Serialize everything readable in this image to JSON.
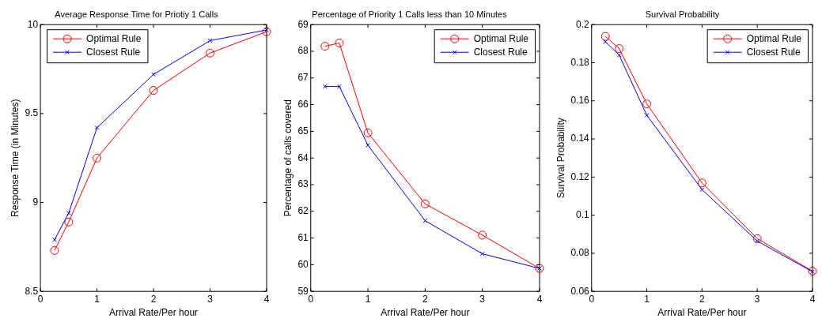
{
  "chart_data": [
    {
      "type": "line",
      "title": "Average Response Time for Priotiy 1 Calls",
      "xlabel": "Arrival Rate/Per hour",
      "ylabel": "Response Time (in Minutes)",
      "x": [
        0.25,
        0.5,
        1,
        2,
        3,
        4
      ],
      "xlim": [
        0,
        4
      ],
      "xticks": [
        0,
        1,
        2,
        3,
        4
      ],
      "ylim": [
        8.5,
        10
      ],
      "yticks": [
        8.5,
        9,
        9.5,
        10
      ],
      "grid": false,
      "legend": "top left",
      "series": [
        {
          "name": "Optimal Rule",
          "color": "#ff0000",
          "marker": "circle",
          "values": [
            8.73,
            8.89,
            9.25,
            9.63,
            9.84,
            9.96
          ]
        },
        {
          "name": "Closest Rule",
          "color": "#0000ff",
          "marker": "cross",
          "values": [
            8.79,
            8.94,
            9.42,
            9.72,
            9.91,
            9.97
          ]
        }
      ]
    },
    {
      "type": "line",
      "title": "Percentage of Priority 1 Calls less than 10 Minutes",
      "xlabel": "Arrival Rate/Per hour",
      "ylabel": "Percentage of calls covered",
      "x": [
        0.25,
        0.5,
        1,
        2,
        3,
        4
      ],
      "xlim": [
        0,
        4
      ],
      "xticks": [
        0,
        1,
        2,
        3,
        4
      ],
      "ylim": [
        59,
        69
      ],
      "yticks": [
        59,
        60,
        61,
        62,
        63,
        64,
        65,
        66,
        67,
        68,
        69
      ],
      "grid": false,
      "legend": "top right",
      "series": [
        {
          "name": "Optimal Rule",
          "color": "#ff0000",
          "marker": "circle",
          "values": [
            68.19,
            68.31,
            64.94,
            62.28,
            61.11,
            59.86
          ]
        },
        {
          "name": "Closest Rule",
          "color": "#0000ff",
          "marker": "cross",
          "values": [
            66.68,
            66.68,
            64.48,
            61.65,
            60.41,
            59.86
          ]
        }
      ]
    },
    {
      "type": "line",
      "title": "Survival Probability",
      "xlabel": "Arrival Rate/Per hour",
      "ylabel": "Survival Probability",
      "x": [
        0.25,
        0.5,
        1,
        2,
        3,
        4
      ],
      "xlim": [
        0,
        4
      ],
      "xticks": [
        0,
        1,
        2,
        3,
        4
      ],
      "ylim": [
        0.06,
        0.2
      ],
      "yticks": [
        0.06,
        0.08,
        0.1,
        0.12,
        0.14,
        0.16,
        0.18,
        0.2
      ],
      "grid": false,
      "legend": "top right",
      "series": [
        {
          "name": "Optimal Rule",
          "color": "#ff0000",
          "marker": "circle",
          "values": [
            0.1938,
            0.1874,
            0.1584,
            0.1169,
            0.0877,
            0.0706
          ]
        },
        {
          "name": "Closest Rule",
          "color": "#0000ff",
          "marker": "cross",
          "values": [
            0.191,
            0.184,
            0.1524,
            0.1134,
            0.0864,
            0.0703
          ]
        }
      ]
    }
  ]
}
